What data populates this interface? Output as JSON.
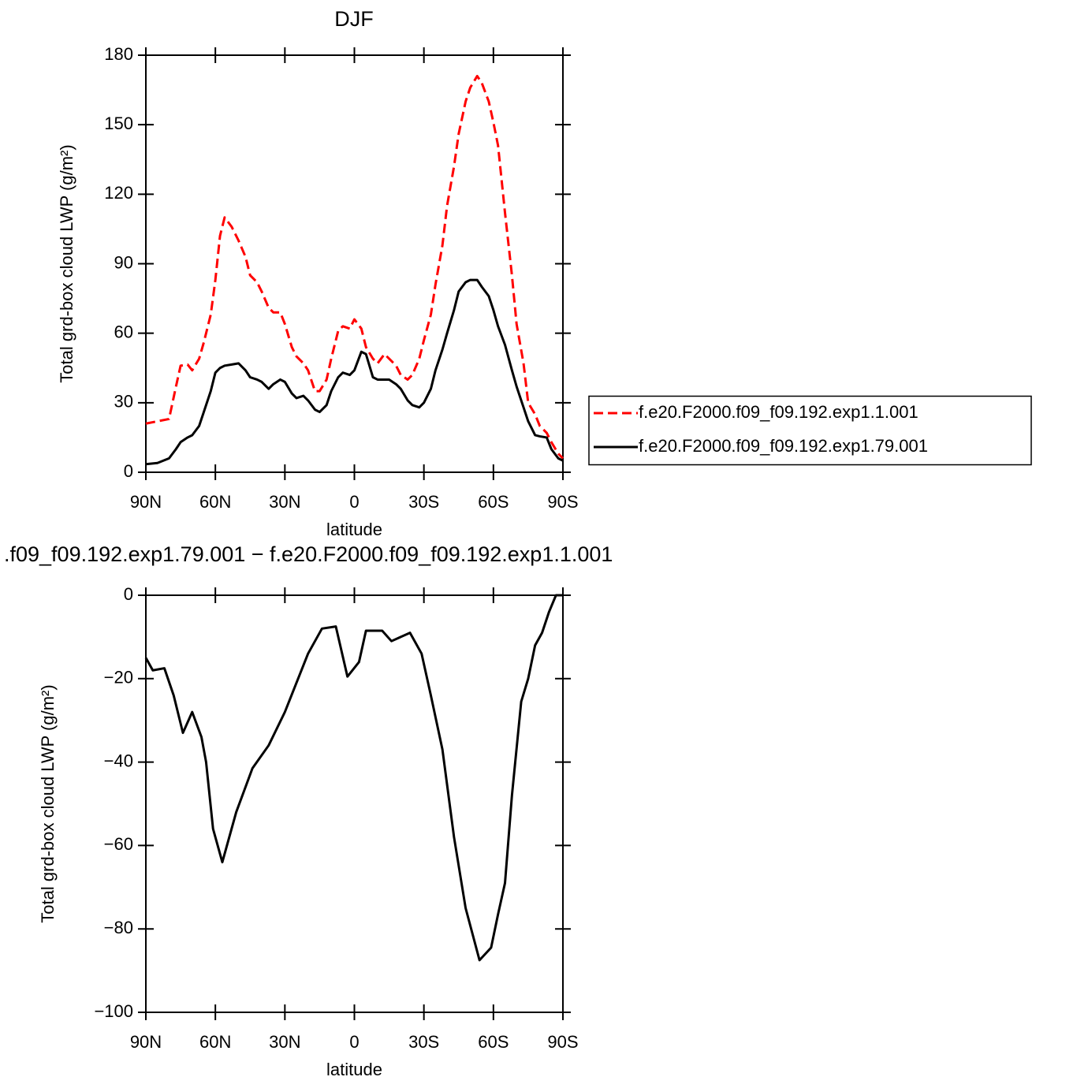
{
  "chart_data": [
    {
      "type": "line",
      "title": "DJF",
      "xlabel": "latitude",
      "ylabel": "Total grd-box cloud LWP (g/m²)",
      "xlim": [
        90,
        -90
      ],
      "xticks": [
        {
          "value": 90,
          "label": "90N"
        },
        {
          "value": 60,
          "label": "60N"
        },
        {
          "value": 30,
          "label": "30N"
        },
        0,
        {
          "value": -30,
          "label": "30S"
        },
        {
          "value": -60,
          "label": "60S"
        },
        {
          "value": -90,
          "label": "90S"
        }
      ],
      "ylim": [
        0,
        180
      ],
      "yticks": [
        0,
        30,
        60,
        90,
        120,
        150,
        180
      ],
      "legend": "right",
      "x": [
        90,
        85,
        80,
        77,
        75,
        72,
        70,
        67,
        65,
        62,
        60,
        58,
        56,
        53,
        50,
        47,
        45,
        42,
        40,
        37,
        35,
        32,
        30,
        27,
        25,
        22,
        20,
        17,
        15,
        12,
        10,
        7,
        5,
        2,
        0,
        -3,
        -5,
        -8,
        -10,
        -13,
        -15,
        -18,
        -20,
        -23,
        -25,
        -28,
        -30,
        -33,
        -35,
        -38,
        -40,
        -43,
        -45,
        -48,
        -50,
        -53,
        -55,
        -58,
        -60,
        -62,
        -65,
        -68,
        -70,
        -73,
        -75,
        -78,
        -80,
        -83,
        -85,
        -88,
        -90
      ],
      "series": [
        {
          "name": "f.e20.F2000.f09_f09.192.exp1.1.001",
          "color": "#ff0000",
          "dashed": true,
          "values": [
            21,
            22,
            23,
            37,
            46,
            46.5,
            44,
            49,
            56,
            68,
            83,
            102,
            110,
            106,
            100,
            93,
            85,
            82,
            78,
            71,
            69,
            69,
            64,
            54,
            50,
            47,
            44,
            35,
            35,
            40,
            49,
            61,
            63,
            62,
            66,
            62,
            54,
            49,
            47,
            51,
            49,
            46,
            42,
            40,
            42,
            49,
            57,
            68,
            81,
            98,
            115,
            132,
            146,
            160,
            166,
            171,
            168,
            160,
            151,
            141,
            112,
            85,
            64,
            47,
            30,
            25,
            20,
            17,
            13,
            8,
            6
          ]
        },
        {
          "name": "f.e20.F2000.f09_f09.192.exp1.79.001",
          "color": "#000000",
          "dashed": false,
          "values": [
            3.5,
            4,
            6,
            10,
            13,
            15,
            16,
            20,
            26,
            35,
            43,
            45,
            46,
            46.5,
            47,
            44,
            41,
            40,
            39,
            36,
            38,
            40,
            39,
            34,
            32,
            33,
            31,
            27,
            26,
            29,
            35,
            41,
            43,
            42,
            44,
            52,
            51,
            41,
            40,
            40,
            40,
            38,
            36,
            31,
            29,
            28,
            30,
            36,
            44,
            53,
            60,
            70,
            78,
            82,
            83,
            83,
            80,
            76,
            70,
            63,
            55,
            44,
            37,
            28,
            22,
            16,
            15.5,
            15,
            10,
            6,
            5
          ]
        }
      ]
    },
    {
      "type": "line",
      "title": ".f09_f09.192.exp1.79.001 − f.e20.F2000.f09_f09.192.exp1.1.001",
      "xlabel": "latitude",
      "ylabel": "Total grd-box cloud LWP (g/m²)",
      "xlim": [
        90,
        -90
      ],
      "xticks": [
        {
          "value": 90,
          "label": "90N"
        },
        {
          "value": 60,
          "label": "60N"
        },
        {
          "value": 30,
          "label": "30N"
        },
        0,
        {
          "value": -30,
          "label": "30S"
        },
        {
          "value": -60,
          "label": "60S"
        },
        {
          "value": -90,
          "label": "90S"
        }
      ],
      "ylim": [
        -100,
        0
      ],
      "yticks": [
        {
          "value": -100,
          "label": "−100"
        },
        {
          "value": -80,
          "label": "−80"
        },
        {
          "value": -60,
          "label": "−60"
        },
        {
          "value": -40,
          "label": "−40"
        },
        {
          "value": -20,
          "label": "−20"
        },
        0
      ],
      "x": [
        90,
        87,
        82,
        78,
        74,
        70,
        66,
        64,
        61,
        57,
        51,
        44,
        37,
        30,
        25,
        20,
        14,
        8,
        3,
        -2,
        -5,
        -12,
        -16,
        -24,
        -29,
        -33,
        -38,
        -43,
        -48,
        -54,
        -59,
        -62,
        -65,
        -68,
        -72,
        -75,
        -78,
        -81,
        -84,
        -87,
        -90
      ],
      "series": [
        {
          "color": "#000000",
          "dashed": false,
          "values": [
            -15,
            -18,
            -17.5,
            -24,
            -33,
            -28,
            -34,
            -40,
            -56,
            -64,
            -52,
            -41.5,
            -36,
            -28,
            -21,
            -14,
            -8,
            -7.5,
            -19.5,
            -16,
            -8.5,
            -8.5,
            -11,
            -9,
            -14,
            -24,
            -37,
            -58,
            -75,
            -87.5,
            -84.5,
            -76.5,
            -69,
            -48,
            -25.5,
            -20,
            -12,
            -9,
            -4,
            0,
            0
          ]
        }
      ]
    }
  ]
}
